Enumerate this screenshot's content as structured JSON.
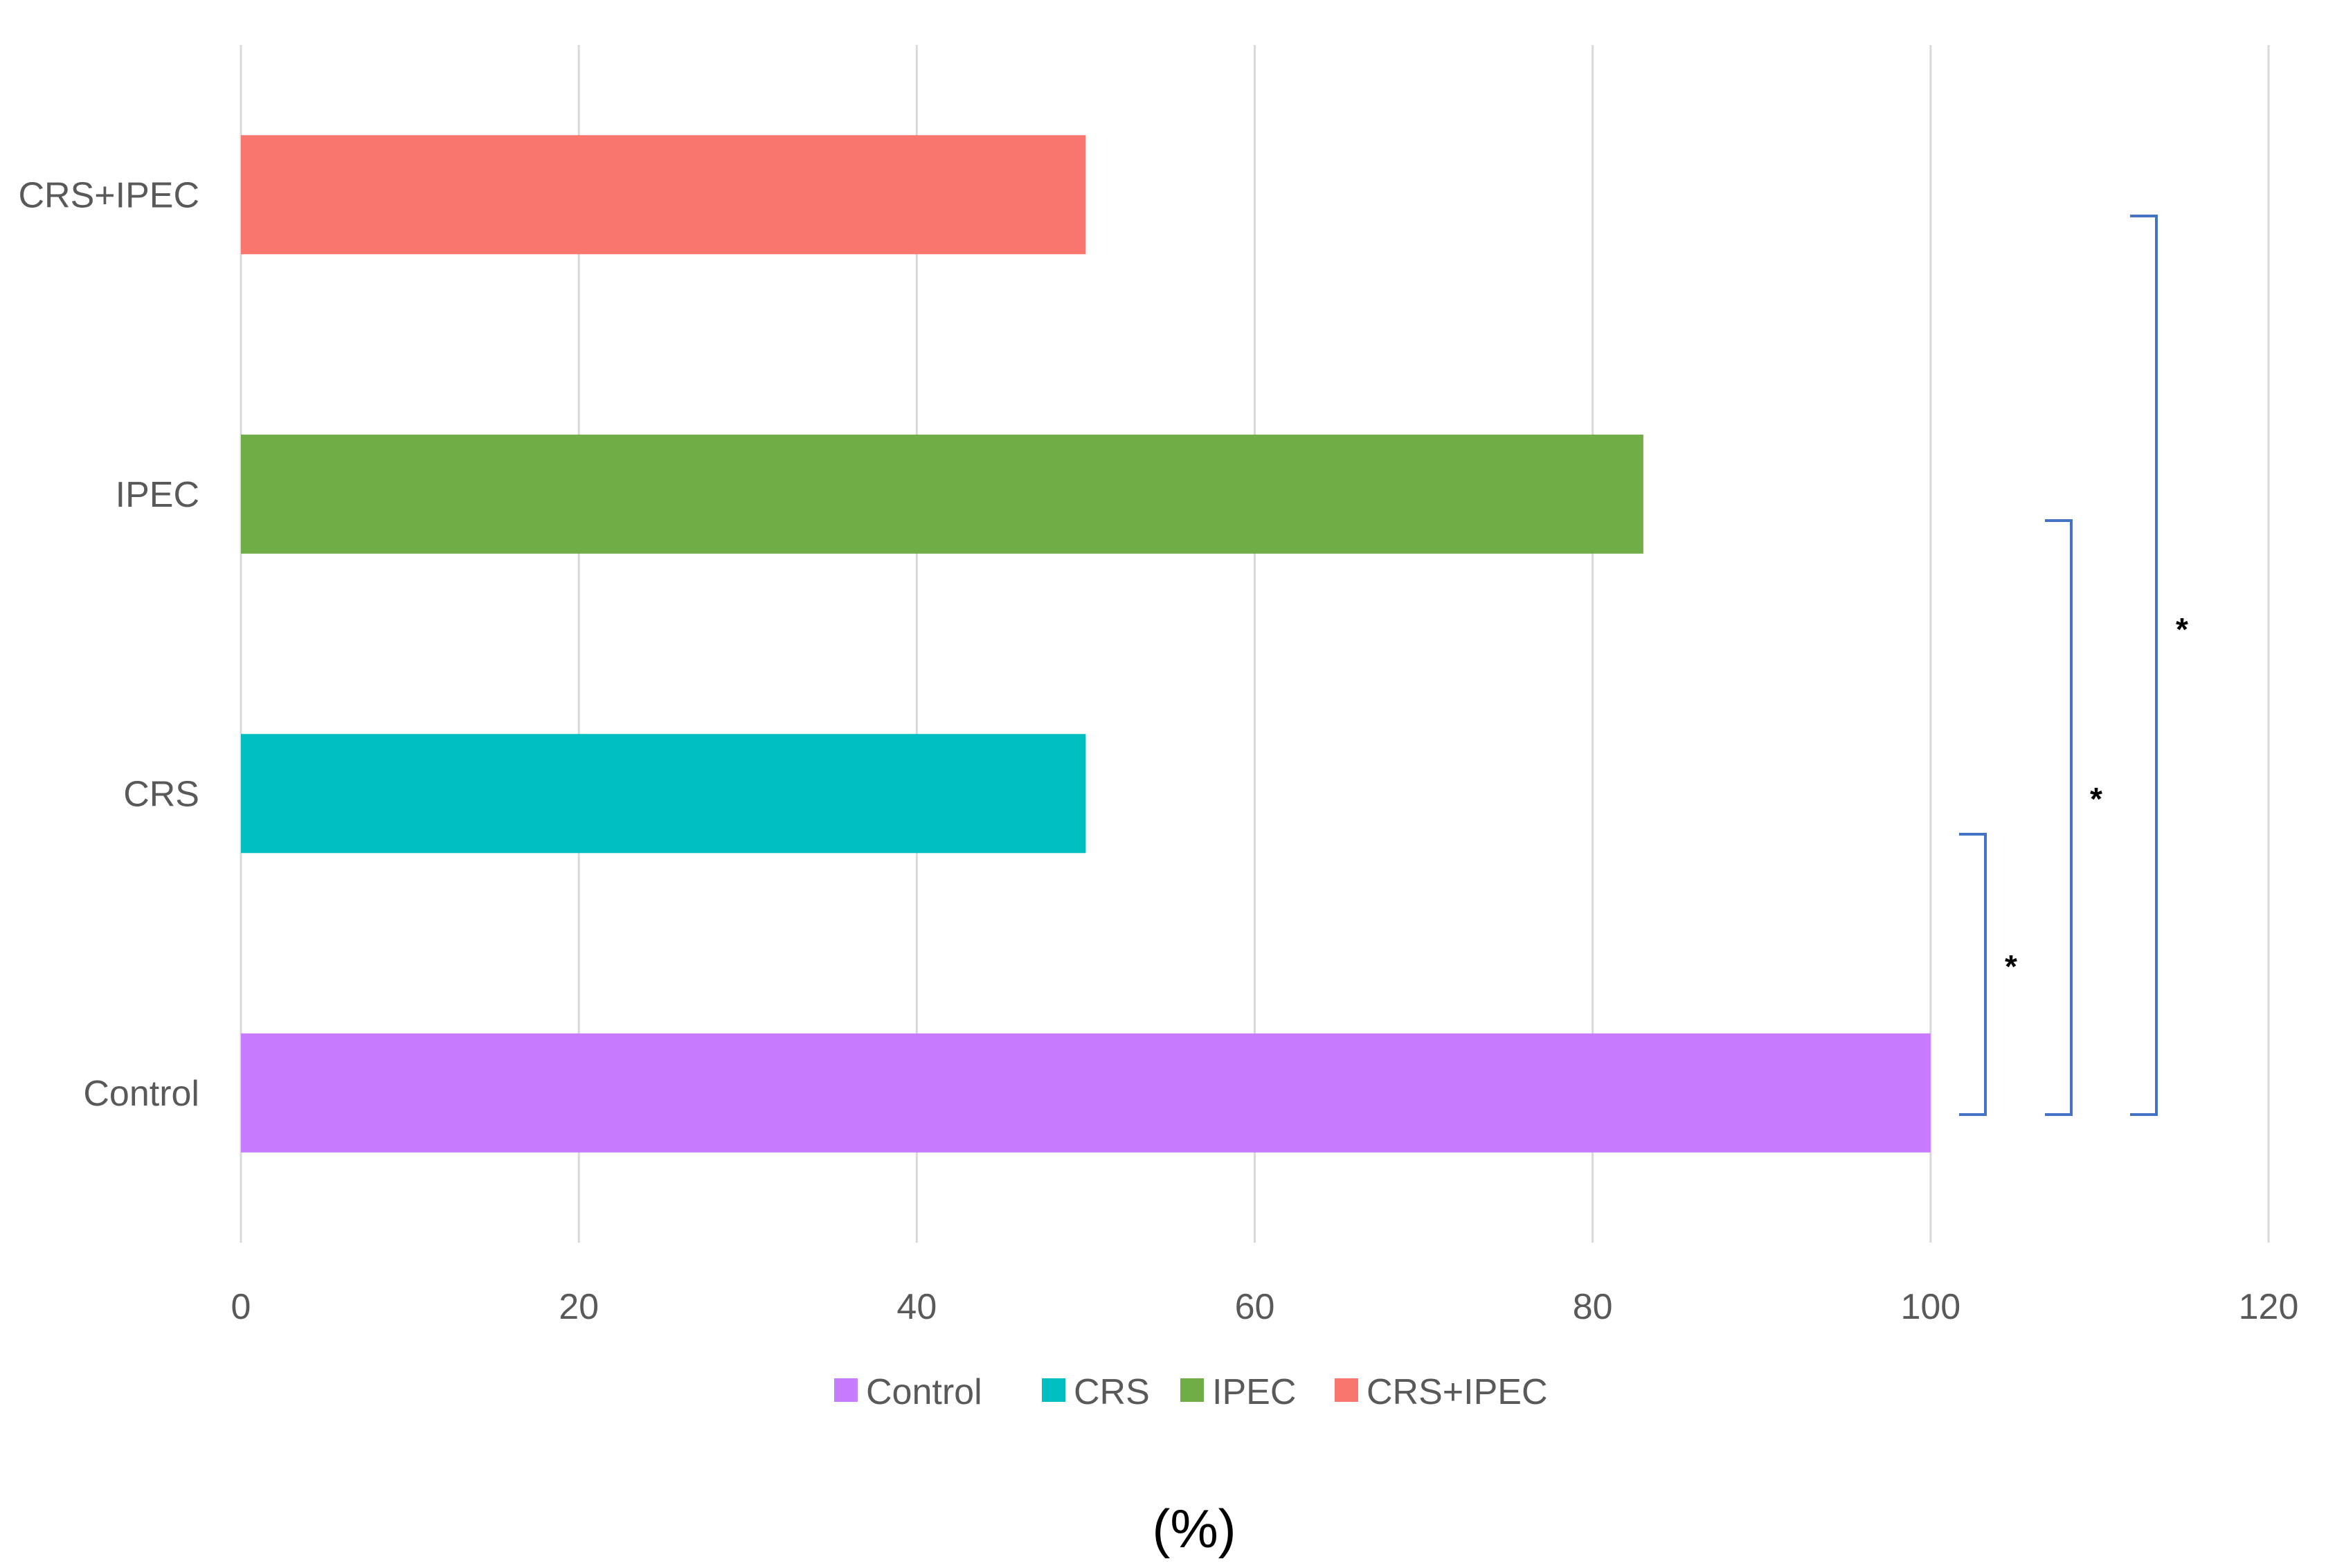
{
  "chart_data": {
    "type": "bar",
    "orientation": "horizontal",
    "categories": [
      "Control",
      "CRS",
      "IPEC",
      "CRS+IPEC"
    ],
    "values": [
      100,
      50,
      83,
      50
    ],
    "colors": [
      "#C77CFF",
      "#00BFC4",
      "#70AD47",
      "#F8766D"
    ],
    "xlabel": "(%)",
    "xlim": [
      0,
      120
    ],
    "xticks": [
      0,
      20,
      40,
      60,
      80,
      100,
      120
    ],
    "grid": true,
    "legend": {
      "position": "bottom",
      "entries": [
        {
          "label": "Control",
          "color": "#C77CFF"
        },
        {
          "label": "CRS",
          "color": "#00BFC4"
        },
        {
          "label": "IPEC",
          "color": "#70AD47"
        },
        {
          "label": "CRS+IPEC",
          "color": "#F8766D"
        }
      ]
    },
    "annotations": [
      {
        "from": "Control",
        "to": "CRS",
        "text": "*"
      },
      {
        "from": "Control",
        "to": "IPEC",
        "text": "*"
      },
      {
        "from": "Control",
        "to": "CRS+IPEC",
        "text": "*"
      }
    ],
    "bracket_color": "#4472C4"
  }
}
